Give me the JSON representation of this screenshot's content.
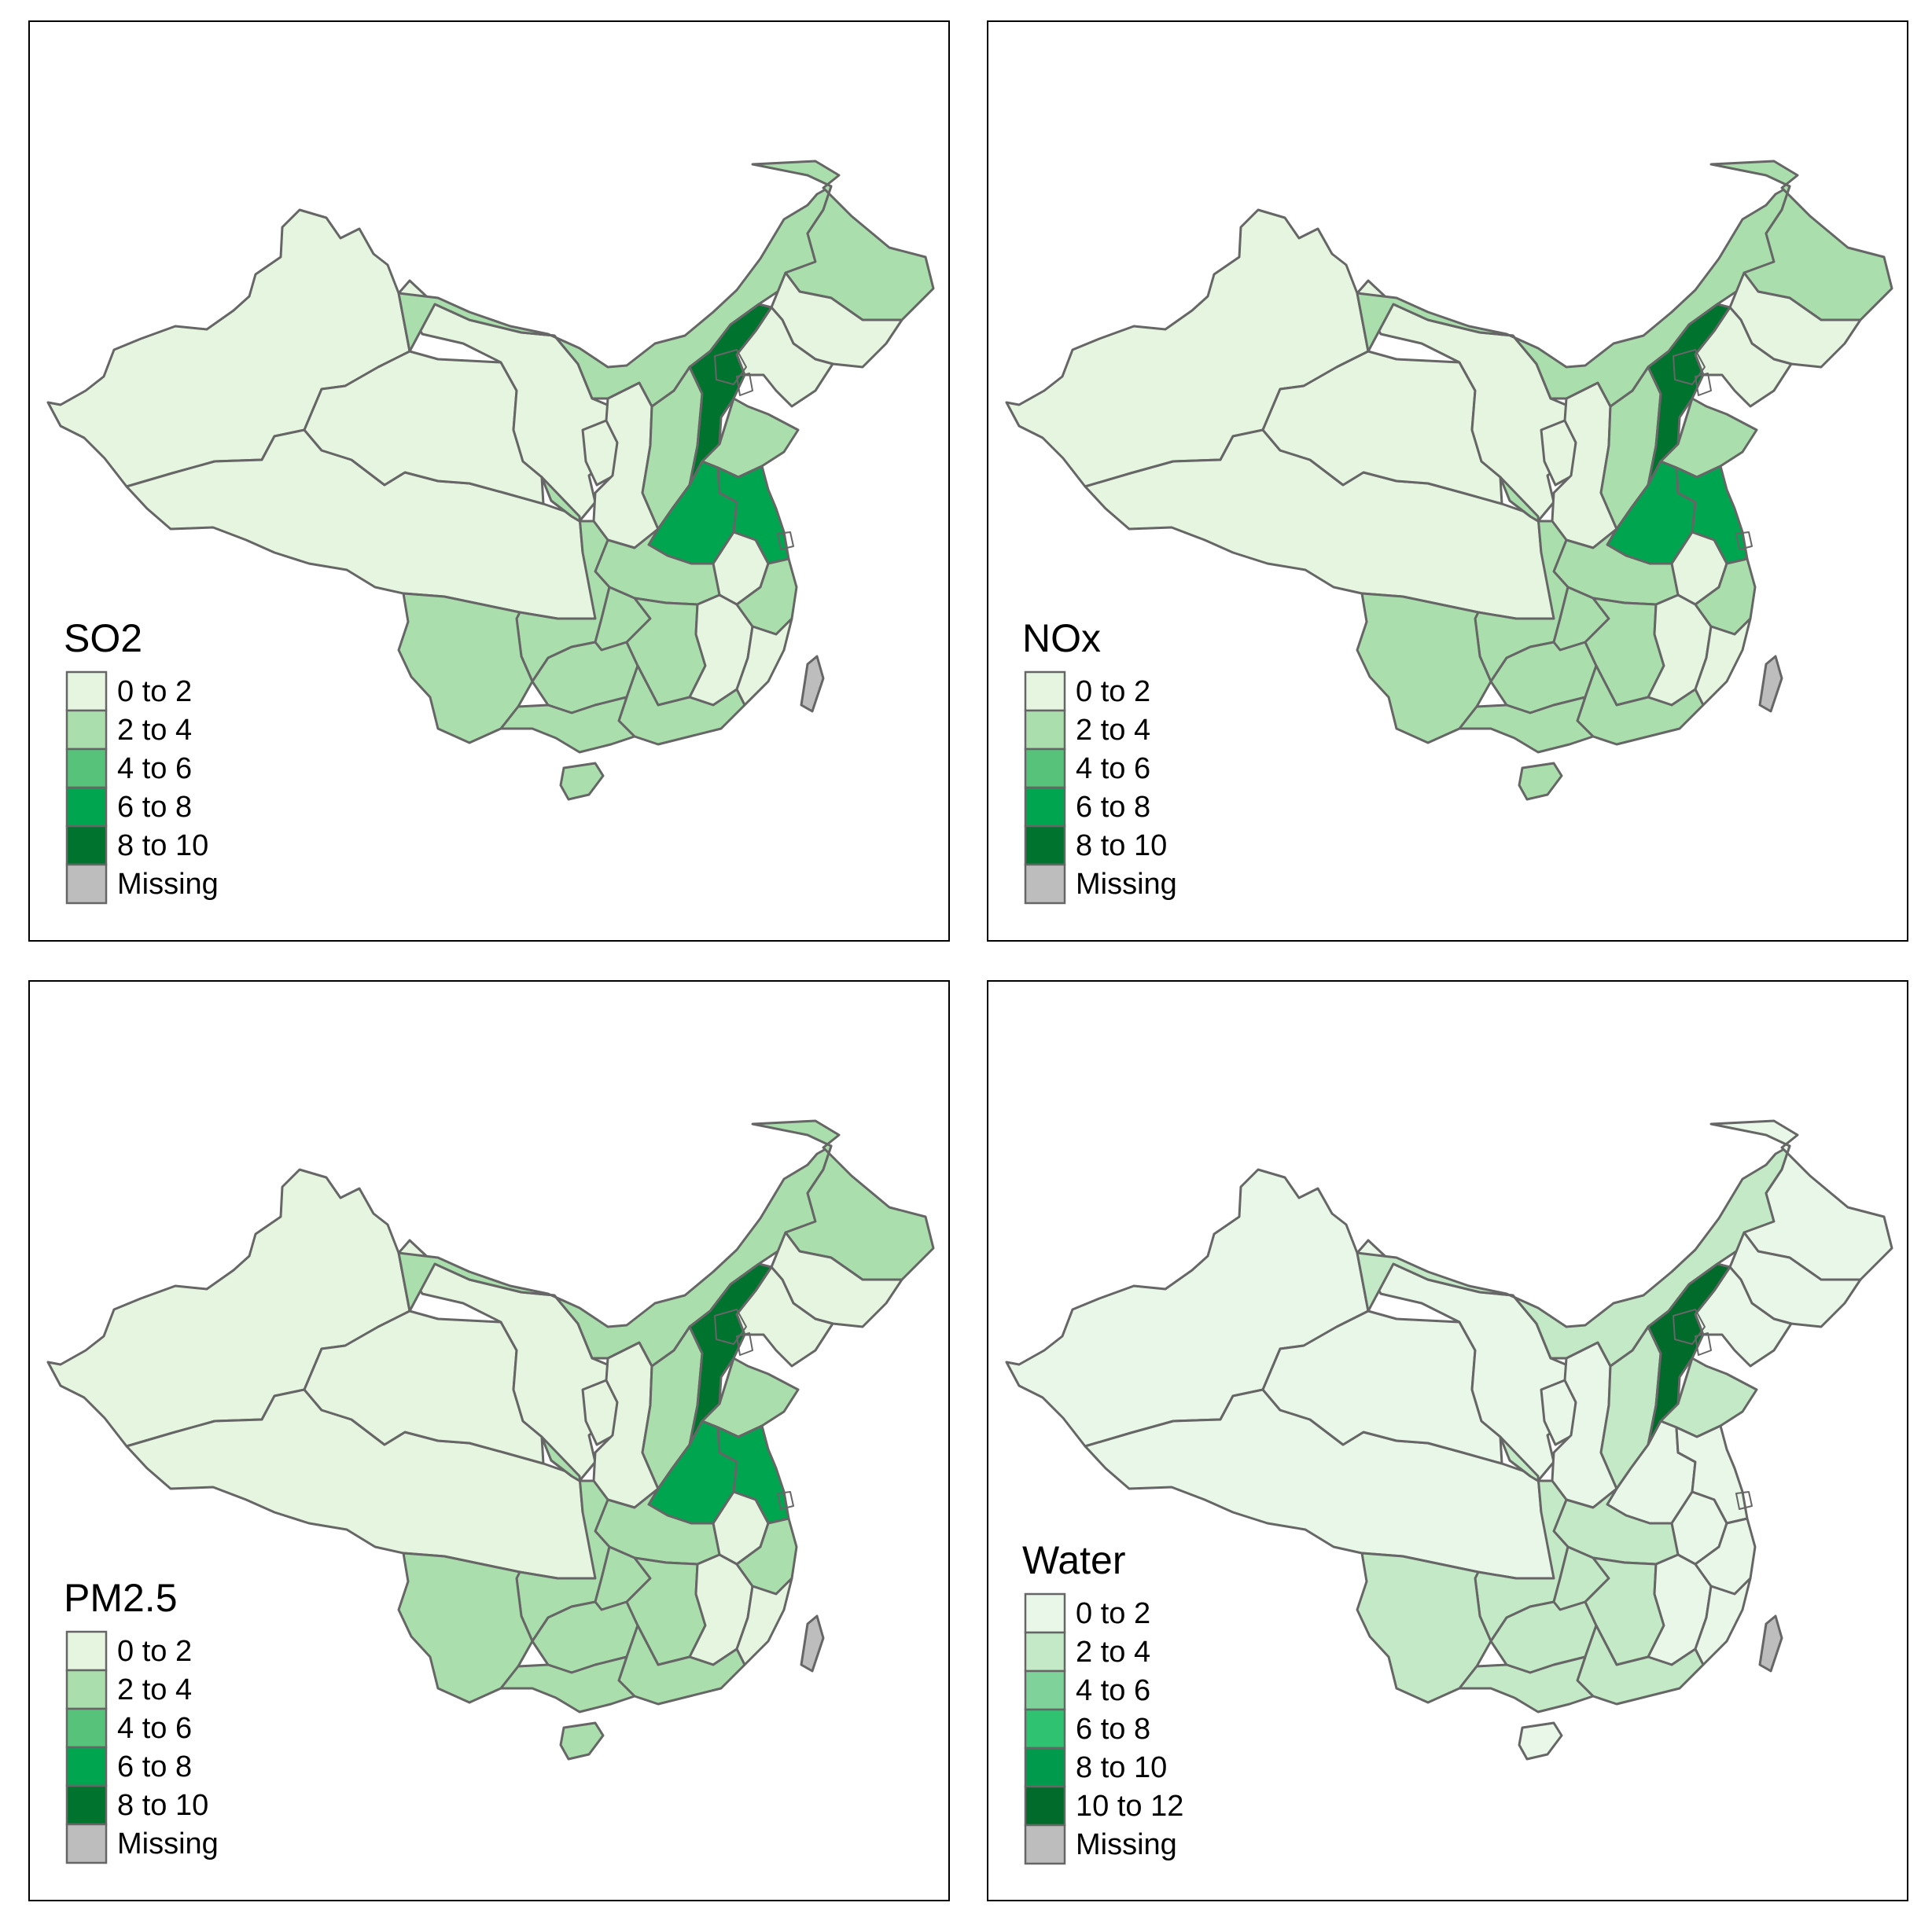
{
  "map": {
    "type": "choropleth",
    "region": "China provinces",
    "missing_color": "#bdbdbd",
    "border_color": "#666666",
    "panels": [
      {
        "id": "so2",
        "title": "SO2",
        "legend": [
          {
            "label": "0 to 2",
            "color": "#e5f5e0"
          },
          {
            "label": "2 to 4",
            "color": "#aadfad"
          },
          {
            "label": "4 to 6",
            "color": "#57c27a"
          },
          {
            "label": "6 to 8",
            "color": "#00a550"
          },
          {
            "label": "8 to 10",
            "color": "#00732e"
          },
          {
            "label": "Missing",
            "color": "#bdbdbd"
          }
        ],
        "classes": {
          "xinjiang": 0,
          "tibet": 0,
          "qinghai": 0,
          "gansu": 0,
          "ningxia": 0,
          "shaanxi": 0,
          "shanxi": 1,
          "inner_mongolia": 1,
          "heilongjiang": 1,
          "jilin": 0,
          "liaoning": 0,
          "hebei": 4,
          "shandong": 1,
          "henan": 3,
          "jiangsu": 3,
          "anhui": 0,
          "hubei": 1,
          "sichuan": 1,
          "chongqing": 1,
          "yunnan": 1,
          "guizhou": 1,
          "hunan": 1,
          "jiangxi": 0,
          "zhejiang": 1,
          "fujian": 0,
          "guangdong": 1,
          "guangxi": 1,
          "hainan": 1,
          "taiwan": 5
        }
      },
      {
        "id": "nox",
        "title": "NOx",
        "legend": [
          {
            "label": "0 to 2",
            "color": "#e5f5e0"
          },
          {
            "label": "2 to 4",
            "color": "#aadfad"
          },
          {
            "label": "4 to 6",
            "color": "#57c27a"
          },
          {
            "label": "6 to 8",
            "color": "#00a550"
          },
          {
            "label": "8 to 10",
            "color": "#00732e"
          },
          {
            "label": "Missing",
            "color": "#bdbdbd"
          }
        ],
        "classes": {
          "xinjiang": 0,
          "tibet": 0,
          "qinghai": 0,
          "gansu": 0,
          "ningxia": 0,
          "shaanxi": 0,
          "shanxi": 1,
          "inner_mongolia": 1,
          "heilongjiang": 1,
          "jilin": 0,
          "liaoning": 0,
          "hebei": 4,
          "shandong": 1,
          "henan": 3,
          "jiangsu": 3,
          "anhui": 0,
          "hubei": 1,
          "sichuan": 1,
          "chongqing": 1,
          "yunnan": 1,
          "guizhou": 1,
          "hunan": 1,
          "jiangxi": 0,
          "zhejiang": 1,
          "fujian": 0,
          "guangdong": 1,
          "guangxi": 1,
          "hainan": 1,
          "taiwan": 5
        }
      },
      {
        "id": "pm25",
        "title": "PM2.5",
        "legend": [
          {
            "label": "0 to 2",
            "color": "#e5f5e0"
          },
          {
            "label": "2 to 4",
            "color": "#aadfad"
          },
          {
            "label": "4 to 6",
            "color": "#57c27a"
          },
          {
            "label": "6 to 8",
            "color": "#00a550"
          },
          {
            "label": "8 to 10",
            "color": "#00732e"
          },
          {
            "label": "Missing",
            "color": "#bdbdbd"
          }
        ],
        "classes": {
          "xinjiang": 0,
          "tibet": 0,
          "qinghai": 0,
          "gansu": 0,
          "ningxia": 0,
          "shaanxi": 0,
          "shanxi": 1,
          "inner_mongolia": 1,
          "heilongjiang": 1,
          "jilin": 0,
          "liaoning": 0,
          "hebei": 4,
          "shandong": 1,
          "henan": 3,
          "jiangsu": 3,
          "anhui": 0,
          "hubei": 1,
          "sichuan": 1,
          "chongqing": 1,
          "yunnan": 1,
          "guizhou": 1,
          "hunan": 1,
          "jiangxi": 0,
          "zhejiang": 1,
          "fujian": 0,
          "guangdong": 1,
          "guangxi": 1,
          "hainan": 1,
          "taiwan": 5
        }
      },
      {
        "id": "water",
        "title": "Water",
        "legend": [
          {
            "label": "0 to 2",
            "color": "#e9f7e8"
          },
          {
            "label": "2 to 4",
            "color": "#c4e9c6"
          },
          {
            "label": "4 to 6",
            "color": "#7fd39a"
          },
          {
            "label": "6 to 8",
            "color": "#2ec271"
          },
          {
            "label": "8 to 10",
            "color": "#009a4c"
          },
          {
            "label": "10 to 12",
            "color": "#006b2a"
          },
          {
            "label": "Missing",
            "color": "#bdbdbd"
          }
        ],
        "classes": {
          "xinjiang": 0,
          "tibet": 0,
          "qinghai": 0,
          "gansu": 0,
          "ningxia": 0,
          "shaanxi": 0,
          "shanxi": 1,
          "inner_mongolia": 1,
          "heilongjiang": 0,
          "jilin": 0,
          "liaoning": 0,
          "hebei": 5,
          "shandong": 1,
          "henan": 0,
          "jiangsu": 0,
          "anhui": 0,
          "hubei": 1,
          "sichuan": 1,
          "chongqing": 1,
          "yunnan": 1,
          "guizhou": 1,
          "hunan": 1,
          "jiangxi": 0,
          "zhejiang": 0,
          "fujian": 0,
          "guangdong": 1,
          "guangxi": 1,
          "hainan": 0,
          "taiwan": 6
        }
      }
    ]
  }
}
